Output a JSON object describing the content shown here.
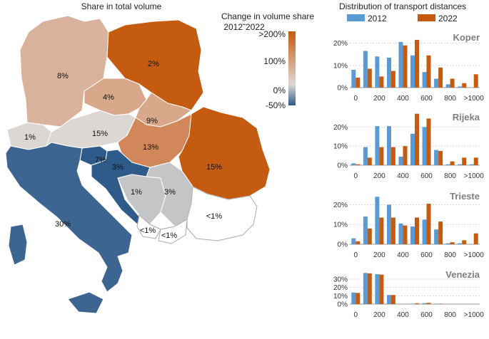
{
  "map": {
    "title": "Share in total volume",
    "legend": {
      "title": "Change in volume share",
      "subtitle": "2012˜2022",
      "ticks": [
        ">200%",
        "100%",
        "0%",
        "-50%"
      ],
      "colors": {
        "high": "#c55a11",
        "mid": "#d9a88a",
        "zero": "#dcd7d3",
        "low": "#2e5b8a"
      }
    },
    "labels": [
      "8%",
      "2%",
      "4%",
      "9%",
      "1%",
      "15%",
      "13%",
      "15%",
      "7%",
      "3%",
      "30%",
      "1%",
      "3%",
      "<1%",
      "<1%",
      "<1%"
    ]
  },
  "chart_data": {
    "type": "bar",
    "title": "Distribution of transport distances",
    "legend_placement": "top",
    "categories": [
      "0",
      "100",
      "200",
      "300",
      "400",
      "500",
      "600",
      "700",
      "800",
      "900",
      ">1000"
    ],
    "tick_labels": [
      "0",
      "200",
      "400",
      "600",
      "800",
      ">1000"
    ],
    "colors": {
      "2012": "#5b9bd5",
      "2022": "#c55a11"
    },
    "series_names": [
      "2012",
      "2022"
    ],
    "panels": [
      {
        "name": "Koper",
        "ylim": [
          0,
          25
        ],
        "yticks": [
          "20%",
          "10%",
          "0%"
        ],
        "series": [
          {
            "name": "2012",
            "values": [
              8,
              16.5,
              14,
              13.5,
              20.5,
              14.5,
              7,
              4,
              1.5,
              0.5,
              0
            ]
          },
          {
            "name": "2022",
            "values": [
              4.5,
              8.5,
              5,
              7.5,
              19,
              21.5,
              14.5,
              9,
              4,
              2,
              6
            ]
          }
        ]
      },
      {
        "name": "Rijeka",
        "ylim": [
          0,
          28
        ],
        "yticks": [
          "20%",
          "10%",
          "0%"
        ],
        "series": [
          {
            "name": "2012",
            "values": [
              1,
              9.5,
              20.5,
              20.5,
              4.5,
              16.5,
              20,
              8,
              0.5,
              0.5,
              0.5
            ]
          },
          {
            "name": "2022",
            "values": [
              0.5,
              4,
              9.5,
              9.5,
              10,
              27,
              24.5,
              7.5,
              2,
              4,
              4
            ]
          }
        ]
      },
      {
        "name": "Trieste",
        "ylim": [
          0,
          27
        ],
        "yticks": [
          "20%",
          "10%",
          "0%"
        ],
        "series": [
          {
            "name": "2012",
            "values": [
              3,
              14,
              24,
              20,
              10.5,
              9,
              12.5,
              7.5,
              0.5,
              0.5,
              0
            ]
          },
          {
            "name": "2022",
            "values": [
              1.5,
              8,
              13.5,
              13.5,
              9.5,
              13.5,
              20.5,
              11.5,
              1,
              2,
              5.5
            ]
          }
        ]
      },
      {
        "name": "Venezia",
        "ylim": [
          0,
          42
        ],
        "yticks": [
          "30%",
          "20%",
          "10%",
          "0%"
        ],
        "series": [
          {
            "name": "2012",
            "values": [
              14,
              37.5,
              36,
              11,
              0,
              0.5,
              1,
              0.5,
              0,
              0,
              0
            ]
          },
          {
            "name": "2022",
            "values": [
              13.5,
              37,
              35.5,
              11,
              0,
              1,
              1.5,
              0.5,
              0,
              0,
              0
            ]
          }
        ]
      }
    ]
  }
}
